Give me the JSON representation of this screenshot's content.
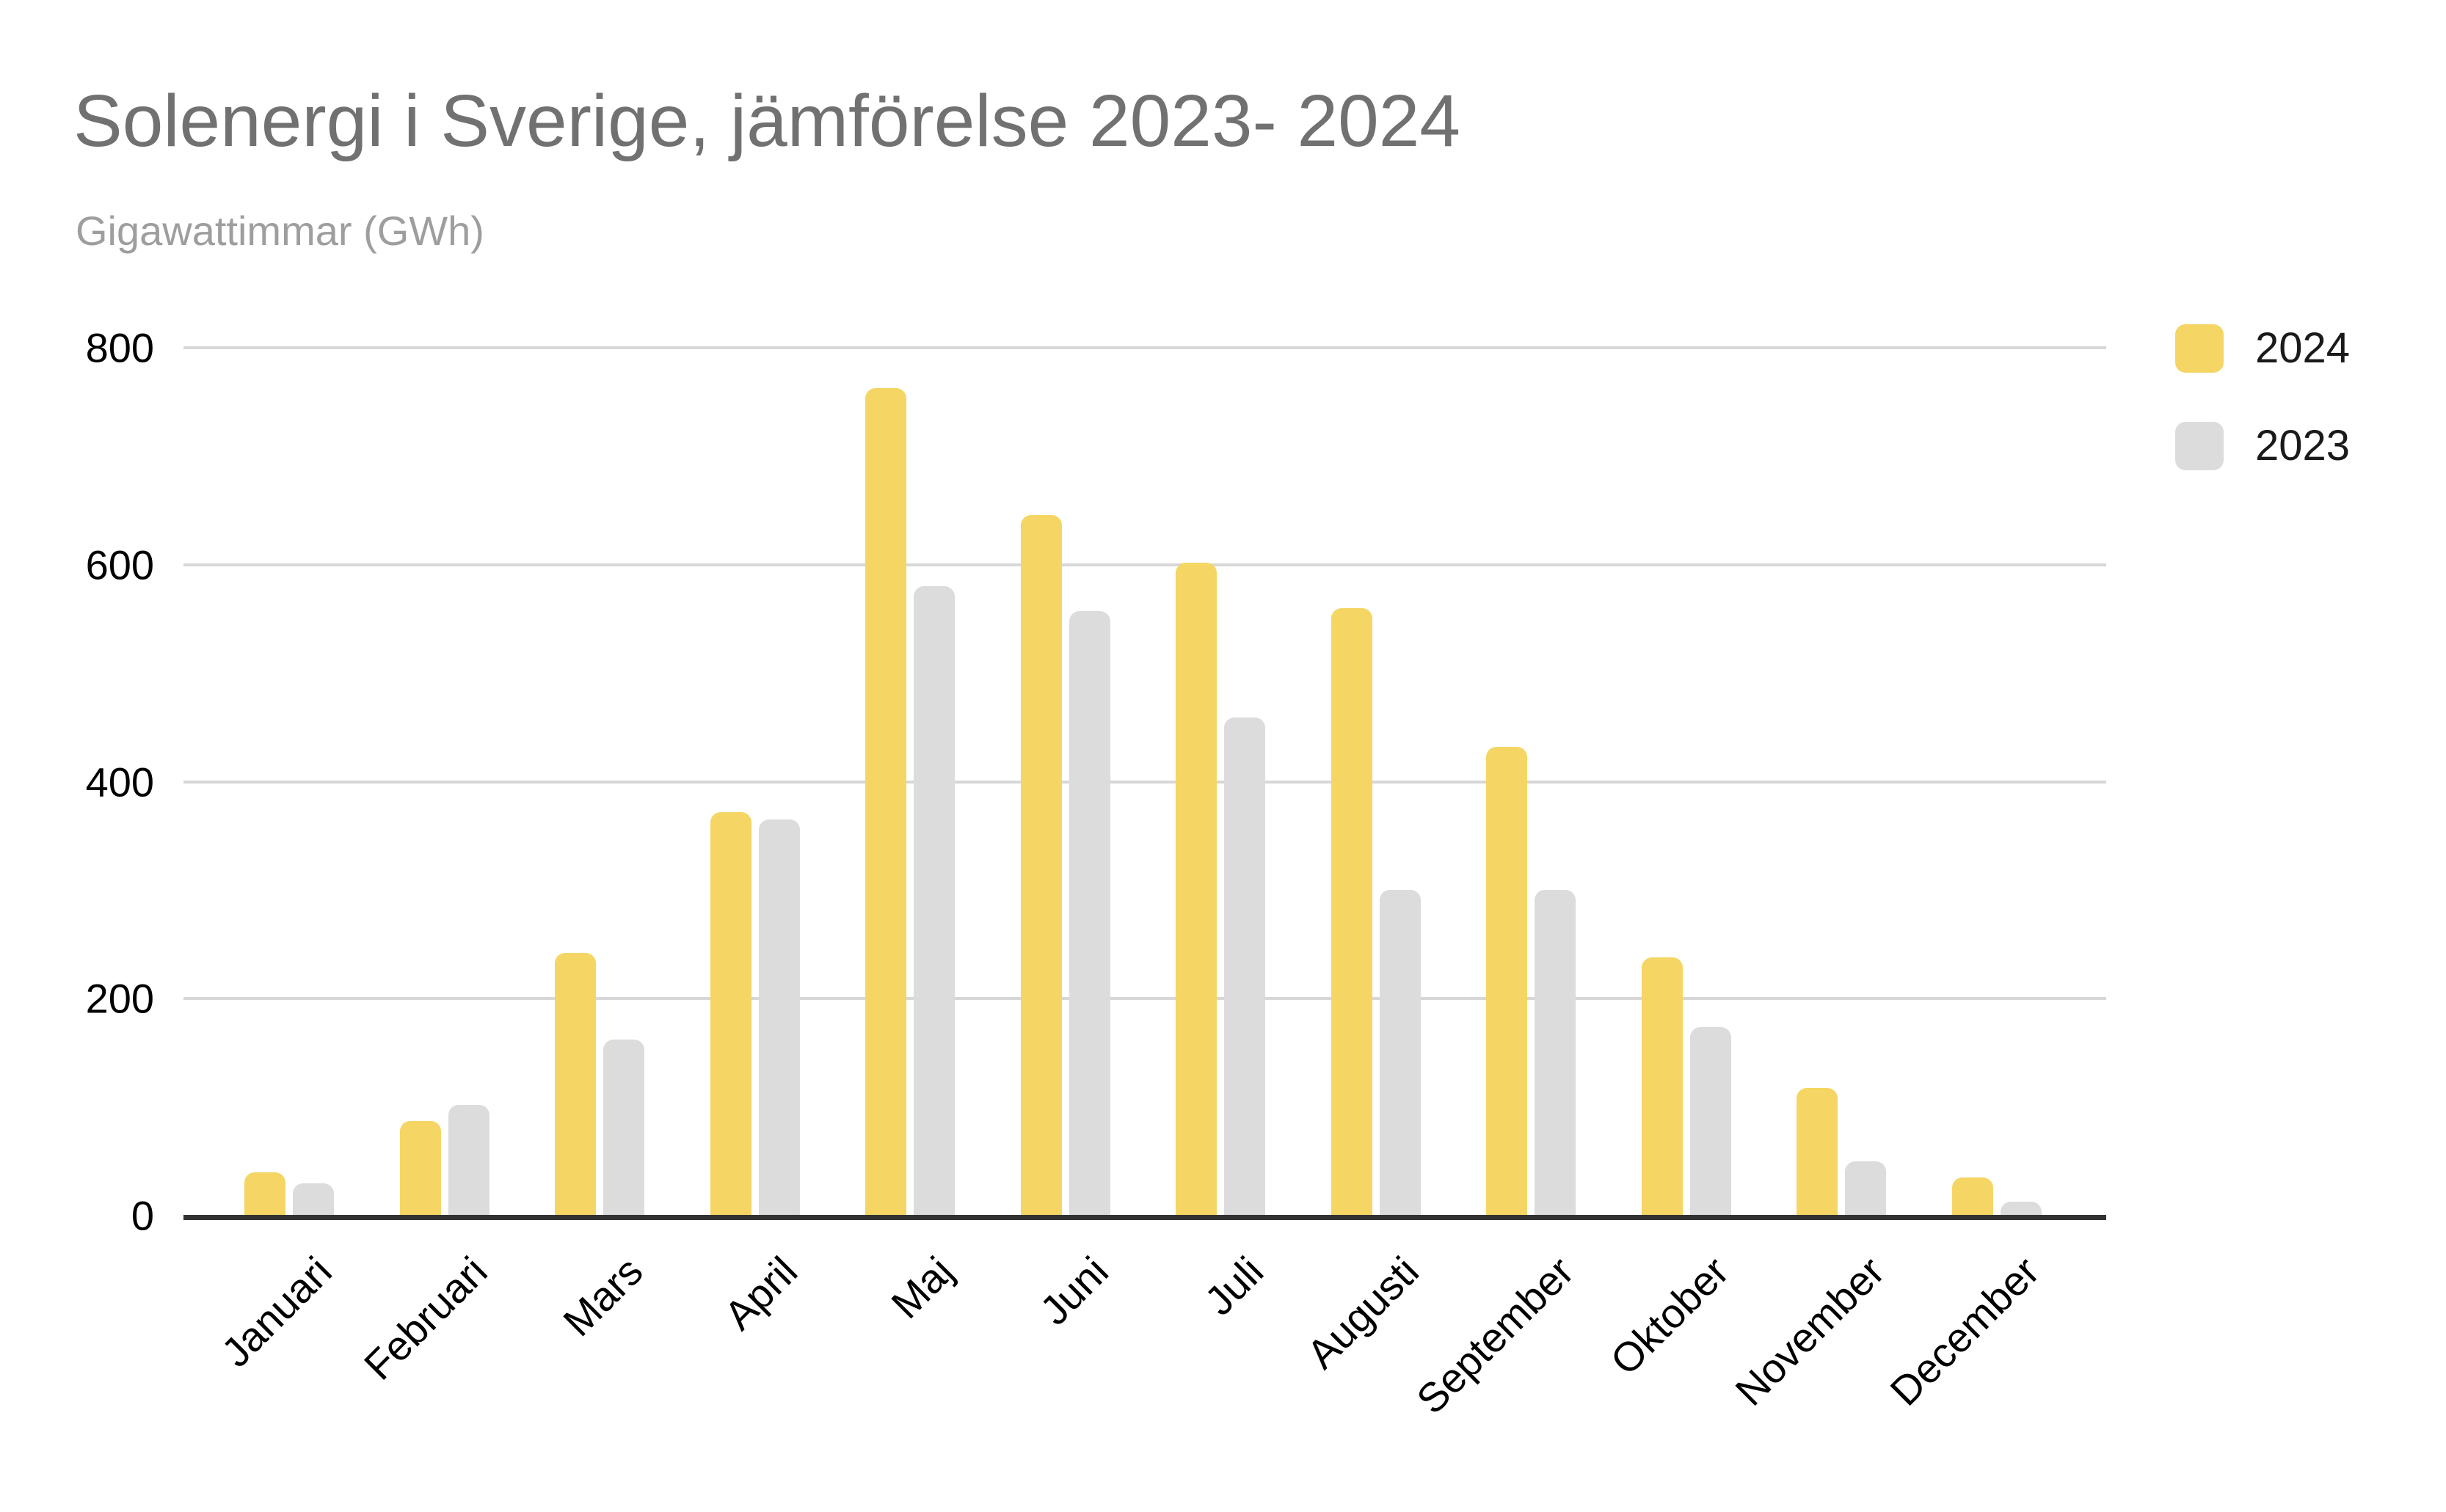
{
  "page": {
    "background": "#ffffff"
  },
  "chart_data": {
    "type": "bar",
    "title": "Solenergi i Sverige, jämförelse 2023- 2024",
    "subtitle": "Gigawattimmar (GWh)",
    "categories": [
      "Januari",
      "Februari",
      "Mars",
      "April",
      "Maj",
      "Juni",
      "Juli",
      "Augusti",
      "September",
      "Oktober",
      "November",
      "December"
    ],
    "series": [
      {
        "name": "2024",
        "color": "#F5D664",
        "values": [
          40,
          87,
          242,
          372,
          763,
          646,
          602,
          560,
          432,
          238,
          118,
          35
        ]
      },
      {
        "name": "2023",
        "color": "#DCDCDC",
        "values": [
          30,
          102,
          162,
          365,
          580,
          557,
          459,
          300,
          300,
          174,
          50,
          13
        ]
      }
    ],
    "xlabel": "",
    "ylabel": "",
    "ylim": [
      0,
      800
    ],
    "yticks": [
      0,
      200,
      400,
      600,
      800
    ],
    "grid": true,
    "legend_position": "top-right"
  },
  "style_colors": {
    "title_text": "#717171",
    "subtitle_text": "#9E9E9E",
    "axis_tick_text": "#000000",
    "gridline": "#D7D7D7",
    "baseline": "#333333",
    "series_2024": "#F5D664",
    "series_2023": "#DCDCDC"
  }
}
